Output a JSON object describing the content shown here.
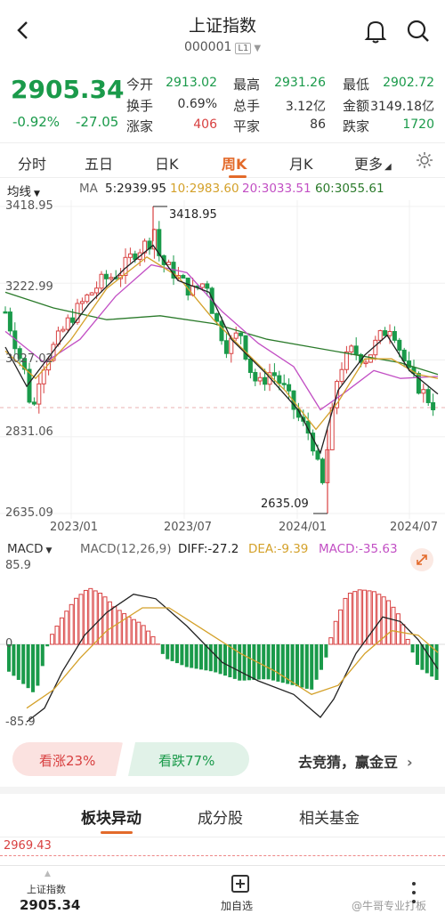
{
  "header": {
    "title": "上证指数",
    "code": "000001",
    "level": "L1"
  },
  "quote": {
    "price": "2905.34",
    "change_pct": "-0.92%",
    "change_abs": "-27.05",
    "stats": [
      {
        "label": "今开",
        "value": "2913.02",
        "color": "green"
      },
      {
        "label": "最高",
        "value": "2931.26",
        "color": "green"
      },
      {
        "label": "最低",
        "value": "2902.72",
        "color": "green"
      },
      {
        "label": "换手",
        "value": "0.69%",
        "color": "dark"
      },
      {
        "label": "总手",
        "value": "3.12亿",
        "color": "dark"
      },
      {
        "label": "金额",
        "value": "3149.18亿",
        "color": "dark"
      },
      {
        "label": "涨家",
        "value": "406",
        "color": "red"
      },
      {
        "label": "平家",
        "value": "86",
        "color": "dark"
      },
      {
        "label": "跌家",
        "value": "1720",
        "color": "green"
      }
    ]
  },
  "tabs": [
    "分时",
    "五日",
    "日K",
    "周K",
    "月K",
    "更多"
  ],
  "active_tab": "周K",
  "ma": {
    "dropdown": "均线",
    "label": "MA",
    "items": [
      {
        "text": "5:2939.95",
        "color": "#222222"
      },
      {
        "text": "10:2983.60",
        "color": "#d4a12a"
      },
      {
        "text": "20:3033.51",
        "color": "#c24fc4"
      },
      {
        "text": "60:3055.61",
        "color": "#2a7a2a"
      }
    ]
  },
  "kchart": {
    "y_labels": [
      "3418.95",
      "3222.99",
      "3027.02",
      "2831.06",
      "2635.09"
    ],
    "x_labels": [
      "2023/01",
      "2023/07",
      "2024/01",
      "2024/07"
    ],
    "high_label": "3418.95",
    "low_label": "2635.09"
  },
  "macd": {
    "dropdown": "MACD",
    "params": "MACD(12,26,9)",
    "diff": "DIFF:-27.2",
    "dea": "DEA:-9.39",
    "macd": "MACD:-35.63",
    "y_top": "85.9",
    "y_mid": "0",
    "y_bot": "-85.9"
  },
  "sentiment": {
    "up": "看涨23%",
    "down": "看跌77%",
    "cta": "去竞猜，赢金豆"
  },
  "bottom_tabs": [
    "板块异动",
    "成分股",
    "相关基金"
  ],
  "bottom_active": "板块异动",
  "sector_value": "2969.43",
  "footer": {
    "name": "上证指数",
    "price": "2905.34",
    "add": "加自选",
    "watermark": "@牛哥专业打板"
  },
  "colors": {
    "up": "#d84040",
    "down": "#1a9a4a",
    "accent": "#e36a2a"
  }
}
